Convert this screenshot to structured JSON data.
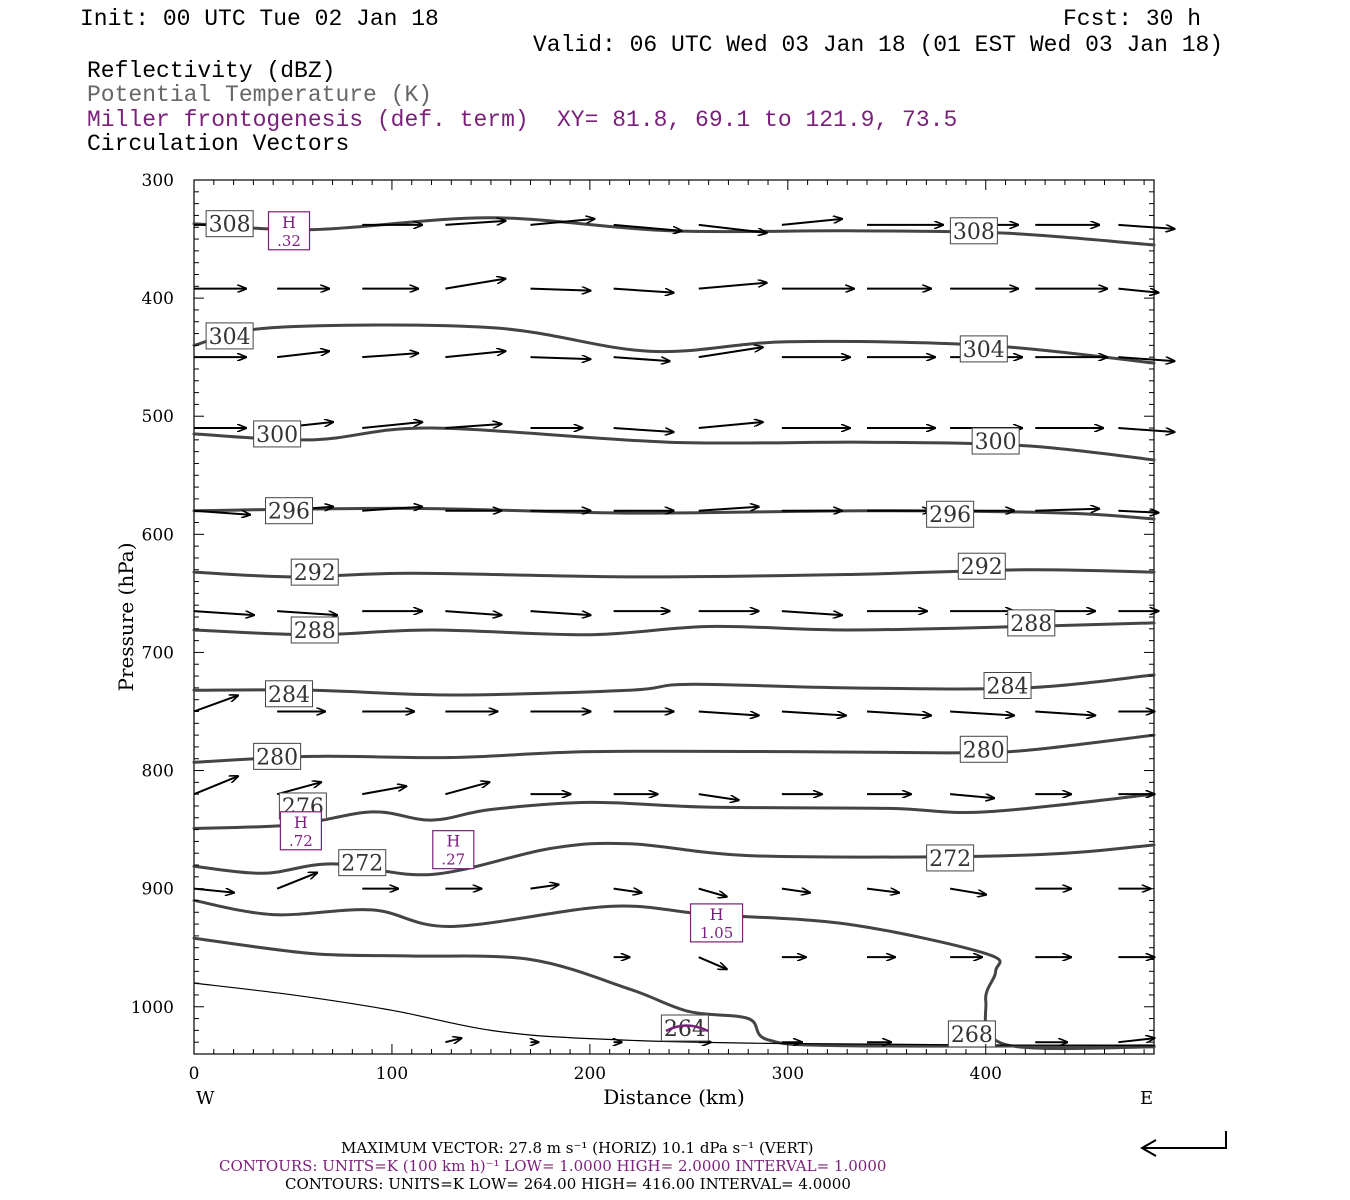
{
  "header": {
    "init": "Init: 00 UTC Tue 02 Jan 18",
    "fcst": "Fcst:   30 h",
    "valid": "Valid: 06 UTC Wed 03 Jan 18 (01 EST Wed 03 Jan 18)"
  },
  "legend": {
    "field1": "Reflectivity (dBZ)",
    "field2": "Potential Temperature (K)",
    "field3": "Miller frontogenesis (def. term)",
    "xy": "XY=  81.8, 69.1 to 121.9, 73.5",
    "field4": "Circulation Vectors"
  },
  "colors": {
    "potential_temperature": "#444444",
    "frontogenesis": "#7a1f7a",
    "vectors": "#000000",
    "axes": "#000000"
  },
  "footer": {
    "vector_line": "MAXIMUM VECTOR:  27.8 m s⁻¹ (HORIZ)          10.1 dPa s⁻¹ (VERT)",
    "contours_purple": "CONTOURS:  UNITS=K (100 km h)⁻¹  LOW=   1.0000       HIGH=  2.0000       INTERVAL=    1.0000",
    "contours_gray": "CONTOURS:  UNITS=K  LOW=  264.00       HIGH=  416.00       INTERVAL=    4.0000"
  },
  "chart_data": {
    "type": "line",
    "xlabel": "Distance (km)",
    "ylabel": "Pressure (hPa)",
    "xlim": [
      0,
      485
    ],
    "ylim": [
      1040,
      300
    ],
    "x_ticks": [
      0,
      100,
      200,
      300,
      400
    ],
    "y_ticks": [
      300,
      400,
      500,
      600,
      700,
      800,
      900,
      1000
    ],
    "x_end_labels": {
      "left": "W",
      "right": "E"
    },
    "grid": false,
    "series": [
      {
        "name": "308",
        "label_at": [
          [
            18,
            337
          ],
          [
            394,
            343
          ]
        ],
        "points": [
          [
            0,
            337
          ],
          [
            60,
            342
          ],
          [
            150,
            332
          ],
          [
            240,
            343
          ],
          [
            330,
            343
          ],
          [
            410,
            345
          ],
          [
            485,
            355
          ]
        ]
      },
      {
        "name": "304",
        "label_at": [
          [
            18,
            432
          ],
          [
            399,
            443
          ]
        ],
        "points": [
          [
            0,
            440
          ],
          [
            40,
            425
          ],
          [
            150,
            425
          ],
          [
            230,
            445
          ],
          [
            300,
            437
          ],
          [
            400,
            440
          ],
          [
            485,
            455
          ]
        ]
      },
      {
        "name": "300",
        "label_at": [
          [
            42,
            515
          ],
          [
            405,
            521
          ]
        ],
        "points": [
          [
            0,
            515
          ],
          [
            60,
            520
          ],
          [
            120,
            510
          ],
          [
            240,
            522
          ],
          [
            340,
            522
          ],
          [
            420,
            525
          ],
          [
            485,
            537
          ]
        ]
      },
      {
        "name": "296",
        "label_at": [
          [
            48,
            580
          ],
          [
            382,
            583
          ]
        ],
        "points": [
          [
            0,
            580
          ],
          [
            110,
            578
          ],
          [
            220,
            582
          ],
          [
            340,
            580
          ],
          [
            440,
            582
          ],
          [
            485,
            587
          ]
        ]
      },
      {
        "name": "292",
        "label_at": [
          [
            61,
            632
          ],
          [
            398,
            627
          ]
        ],
        "points": [
          [
            0,
            632
          ],
          [
            50,
            636
          ],
          [
            110,
            633
          ],
          [
            220,
            636
          ],
          [
            330,
            634
          ],
          [
            420,
            630
          ],
          [
            485,
            632
          ]
        ]
      },
      {
        "name": "288",
        "label_at": [
          [
            61,
            681
          ],
          [
            423,
            675
          ]
        ],
        "points": [
          [
            0,
            681
          ],
          [
            60,
            685
          ],
          [
            120,
            681
          ],
          [
            200,
            685
          ],
          [
            260,
            678
          ],
          [
            330,
            681
          ],
          [
            420,
            678
          ],
          [
            485,
            675
          ]
        ]
      },
      {
        "name": "284",
        "label_at": [
          [
            48,
            735
          ],
          [
            411,
            728
          ]
        ],
        "points": [
          [
            0,
            732
          ],
          [
            60,
            732
          ],
          [
            130,
            736
          ],
          [
            220,
            732
          ],
          [
            250,
            727
          ],
          [
            330,
            730
          ],
          [
            420,
            730
          ],
          [
            485,
            719
          ]
        ]
      },
      {
        "name": "280",
        "label_at": [
          [
            42,
            788
          ],
          [
            399,
            782
          ]
        ],
        "points": [
          [
            0,
            793
          ],
          [
            60,
            788
          ],
          [
            130,
            789
          ],
          [
            200,
            784
          ],
          [
            300,
            784
          ],
          [
            380,
            785
          ],
          [
            420,
            783
          ],
          [
            485,
            770
          ]
        ]
      },
      {
        "name": "276",
        "label_at": [
          [
            55,
            830
          ]
        ],
        "points": [
          [
            0,
            849
          ],
          [
            50,
            846
          ],
          [
            90,
            835
          ],
          [
            120,
            842
          ],
          [
            150,
            833
          ],
          [
            200,
            827
          ],
          [
            260,
            831
          ],
          [
            350,
            832
          ],
          [
            400,
            835
          ],
          [
            485,
            820
          ]
        ]
      },
      {
        "name": "272",
        "label_at": [
          [
            85,
            878
          ],
          [
            382,
            874
          ]
        ],
        "points": [
          [
            0,
            881
          ],
          [
            35,
            887
          ],
          [
            70,
            879
          ],
          [
            120,
            888
          ],
          [
            180,
            866
          ],
          [
            220,
            862
          ],
          [
            280,
            872
          ],
          [
            380,
            873
          ],
          [
            440,
            870
          ],
          [
            485,
            863
          ]
        ]
      },
      {
        "name": "268",
        "label_at": [
          [
            393,
            1023
          ]
        ],
        "points": [
          [
            0,
            910
          ],
          [
            40,
            922
          ],
          [
            90,
            918
          ],
          [
            130,
            932
          ],
          [
            210,
            915
          ],
          [
            260,
            922
          ],
          [
            330,
            930
          ],
          [
            400,
            955
          ],
          [
            405,
            970
          ],
          [
            400,
            995
          ],
          [
            410,
            1032
          ],
          [
            485,
            1034
          ]
        ]
      },
      {
        "name": "264",
        "label_at": [
          [
            248,
            1018
          ]
        ],
        "points": [
          [
            0,
            942
          ],
          [
            60,
            955
          ],
          [
            110,
            957
          ],
          [
            170,
            960
          ],
          [
            220,
            985
          ],
          [
            250,
            1004
          ],
          [
            280,
            1010
          ],
          [
            290,
            1028
          ],
          [
            330,
            1033
          ],
          [
            485,
            1033
          ]
        ]
      },
      {
        "name": "",
        "thin": true,
        "points": [
          [
            0,
            980
          ],
          [
            50,
            990
          ],
          [
            100,
            1003
          ],
          [
            150,
            1020
          ],
          [
            200,
            1027
          ],
          [
            290,
            1031
          ],
          [
            485,
            1033
          ]
        ]
      }
    ],
    "frontogenesis_maxima": [
      {
        "label": "H",
        "value": ".32",
        "x": 48,
        "p": 343
      },
      {
        "label": "H",
        "value": ".72",
        "x": 54,
        "p": 851
      },
      {
        "label": "H",
        "value": ".27",
        "x": 131,
        "p": 867
      },
      {
        "label": "H",
        "value": "1.05",
        "x": 264,
        "p": 929
      }
    ],
    "vectors": {
      "rows": [
        {
          "p": 338,
          "x": [
            0,
            85,
            127,
            170,
            212,
            255,
            297,
            340,
            382,
            425,
            467
          ],
          "u": [
            28,
            30,
            30,
            32,
            34,
            34,
            30,
            38,
            34,
            32,
            28
          ],
          "w": [
            0,
            0,
            -2,
            -3,
            3,
            4,
            -3,
            0,
            0,
            0,
            2
          ]
        },
        {
          "p": 392,
          "x": [
            0,
            42,
            85,
            127,
            170,
            212,
            255,
            297,
            340,
            382,
            425,
            467
          ],
          "u": [
            26,
            26,
            28,
            30,
            30,
            30,
            34,
            36,
            32,
            34,
            36,
            20
          ],
          "w": [
            0,
            0,
            0,
            -5,
            1,
            2,
            -3,
            0,
            0,
            0,
            0,
            2
          ]
        },
        {
          "p": 450,
          "x": [
            0,
            42,
            85,
            127,
            170,
            212,
            255,
            297,
            340,
            382,
            425,
            467
          ],
          "u": [
            26,
            26,
            28,
            30,
            30,
            28,
            32,
            34,
            34,
            36,
            36,
            28
          ],
          "w": [
            0,
            -3,
            -2,
            -3,
            1,
            2,
            -5,
            0,
            0,
            0,
            0,
            2
          ]
        },
        {
          "p": 510,
          "x": [
            0,
            42,
            85,
            127,
            170,
            212,
            255,
            297,
            340,
            382,
            425,
            467
          ],
          "u": [
            26,
            28,
            30,
            28,
            26,
            30,
            32,
            34,
            34,
            36,
            34,
            28
          ],
          "w": [
            0,
            -3,
            -3,
            -2,
            0,
            2,
            -3,
            0,
            0,
            0,
            0,
            2
          ]
        },
        {
          "p": 580,
          "x": [
            0,
            42,
            85,
            127,
            170,
            212,
            255,
            297,
            340,
            382,
            425,
            467
          ],
          "u": [
            28,
            28,
            30,
            28,
            30,
            30,
            30,
            30,
            32,
            32,
            32,
            20
          ],
          "w": [
            2,
            -2,
            -2,
            0,
            0,
            0,
            -2,
            0,
            0,
            0,
            -1,
            1
          ]
        },
        {
          "p": 665,
          "x": [
            0,
            42,
            85,
            127,
            170,
            212,
            255,
            297,
            340,
            382,
            425,
            467
          ],
          "u": [
            30,
            30,
            30,
            28,
            30,
            28,
            30,
            30,
            30,
            32,
            30,
            20
          ],
          "w": [
            2,
            2,
            0,
            2,
            2,
            0,
            0,
            2,
            0,
            0,
            0,
            0
          ]
        },
        {
          "p": 750,
          "x": [
            0,
            42,
            85,
            127,
            170,
            212,
            255,
            297,
            340,
            382,
            425,
            467
          ],
          "u": [
            22,
            24,
            26,
            26,
            30,
            30,
            30,
            32,
            32,
            32,
            30,
            18
          ],
          "w": [
            -8,
            0,
            0,
            0,
            0,
            0,
            2,
            2,
            2,
            2,
            2,
            0
          ]
        },
        {
          "p": 820,
          "x": [
            0,
            42,
            85,
            127,
            170,
            212,
            255,
            297,
            340,
            382,
            425,
            467
          ],
          "u": [
            22,
            22,
            22,
            22,
            20,
            22,
            20,
            20,
            22,
            22,
            18,
            18
          ],
          "w": [
            -9,
            -6,
            -4,
            -6,
            0,
            0,
            3,
            0,
            0,
            2,
            0,
            0
          ]
        },
        {
          "p": 900,
          "x": [
            0,
            42,
            85,
            127,
            170,
            212,
            255,
            297,
            340,
            382,
            425,
            467
          ],
          "u": [
            20,
            20,
            18,
            18,
            14,
            14,
            14,
            14,
            16,
            18,
            18,
            16
          ],
          "w": [
            2,
            -8,
            0,
            0,
            -2,
            2,
            4,
            2,
            2,
            3,
            0,
            0
          ]
        },
        {
          "p": 958,
          "x": [
            212,
            255,
            297,
            340,
            382,
            425,
            467
          ],
          "u": [
            8,
            14,
            12,
            14,
            16,
            18,
            18
          ],
          "w": [
            0,
            6,
            0,
            0,
            0,
            0,
            0
          ]
        },
        {
          "p": 1030,
          "x": [
            127,
            170,
            212,
            255,
            297,
            340,
            382,
            425,
            467
          ],
          "u": [
            8,
            4,
            4,
            6,
            10,
            12,
            14,
            16,
            18
          ],
          "w": [
            -2,
            0,
            0,
            0,
            0,
            0,
            0,
            0,
            -2
          ]
        }
      ]
    }
  }
}
